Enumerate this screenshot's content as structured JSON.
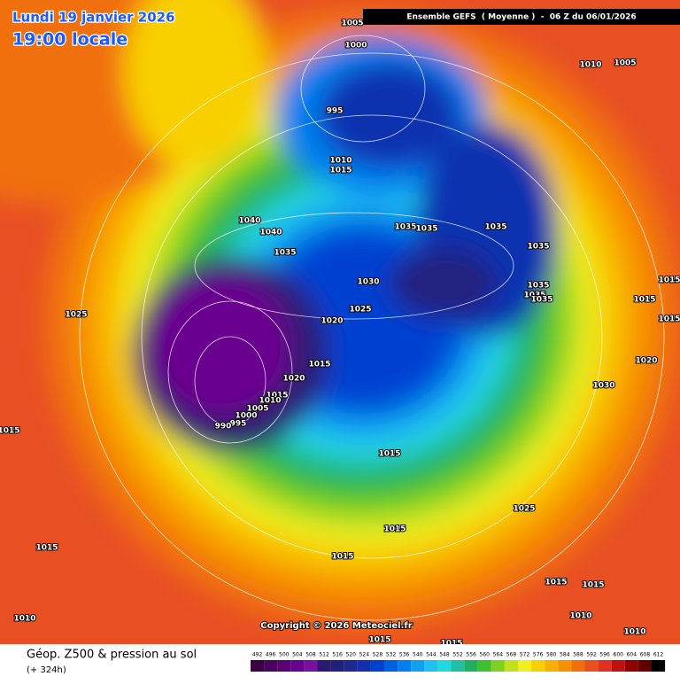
{
  "header": {
    "date": "Lundi 19 janvier 2026",
    "time": "19:00 locale",
    "run": "Ensemble GEFS  ( Moyenne )  -  06 Z du 06/01/2026"
  },
  "copyright": "Copyright © 2026 Meteociel.fr",
  "footer": {
    "title": "Géop. Z500 & pression au sol",
    "lead": "(+ 324h)"
  },
  "colorbar": {
    "values": [
      492,
      496,
      500,
      504,
      508,
      512,
      516,
      520,
      524,
      528,
      532,
      536,
      540,
      544,
      548,
      552,
      556,
      560,
      564,
      568,
      572,
      576,
      580,
      584,
      588,
      592,
      596,
      600,
      604,
      608,
      612
    ],
    "colors": [
      "#3a0040",
      "#4a0060",
      "#5a0070",
      "#6a0090",
      "#7a10a0",
      "#2a1a70",
      "#20207f",
      "#202890",
      "#1030b0",
      "#0040d0",
      "#0060e0",
      "#0080f0",
      "#10a0f0",
      "#20c0f0",
      "#20d8e0",
      "#20c0a0",
      "#20b060",
      "#40c030",
      "#80d020",
      "#c0e020",
      "#f0f020",
      "#f8d000",
      "#f8b000",
      "#f89000",
      "#f07010",
      "#e85020",
      "#e03020",
      "#c01010",
      "#900000",
      "#600000",
      "#000000"
    ]
  },
  "isobar_labels": [
    1005,
    1000,
    995,
    1010,
    1015,
    1040,
    1040,
    1035,
    1035,
    1035,
    1035,
    1035,
    1030,
    1025,
    1020,
    1015,
    1020,
    1015,
    1010,
    1005,
    1000,
    995,
    990,
    1015,
    1025,
    1015,
    1015,
    1010,
    1015,
    1015,
    1025,
    1015,
    1015,
    1010,
    1010,
    1015,
    1015,
    1010,
    1005,
    1035,
    1035,
    1035,
    1015,
    1015,
    1015,
    1020,
    1030
  ]
}
